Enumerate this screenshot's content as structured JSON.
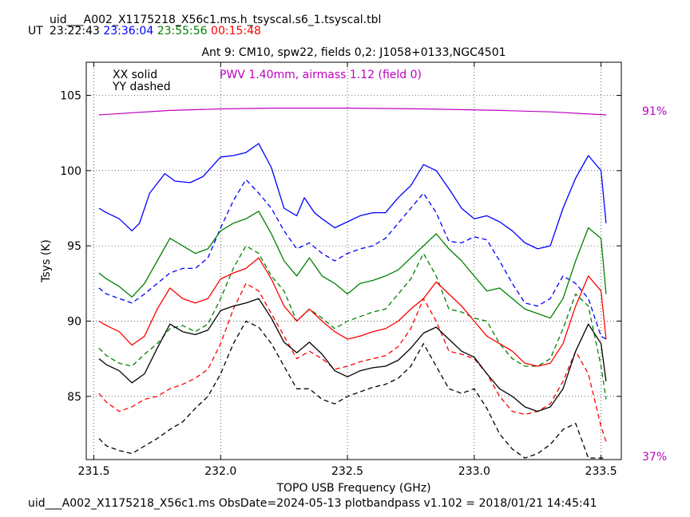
{
  "header": {
    "filename": "uid___A002_X1175218_X56c1.ms.h_tsyscal.s6_1.tsyscal.tbl",
    "ut_label": "UT",
    "times": [
      {
        "text": "23:22:43",
        "color": "#000000"
      },
      {
        "text": "23:36:04",
        "color": "#0000ff"
      },
      {
        "text": "23:55:56",
        "color": "#008000"
      },
      {
        "text": "00:15:48",
        "color": "#ff0000"
      }
    ]
  },
  "footer": "uid___A002_X1175218_X56c1.ms  ObsDate=2024-05-13   plotbandpass v1.102 = 2018/01/21 14:45:41",
  "legend": {
    "solid": "XX solid",
    "dashed": "YY dashed",
    "pwv": "PWV 1.40mm, airmass 1.12 (field 0)"
  },
  "right_axis": {
    "top_label": "91%",
    "bottom_label": "37%",
    "color": "#bf00bf"
  },
  "chart_data": {
    "type": "line",
    "title": "Ant 9: CM10,  spw22,  fields 0,2: J1058+0133,NGC4501",
    "xlabel": "TOPO USB Frequency (GHz)",
    "ylabel": "Tsys (K)",
    "xlim": [
      231.47,
      233.58
    ],
    "ylim": [
      80.8,
      107.2
    ],
    "xticks": [
      "231.5",
      "232.0",
      "232.5",
      "233.0",
      "233.5"
    ],
    "xtick_values": [
      231.5,
      232.0,
      232.5,
      233.0,
      233.5
    ],
    "yticks": [
      "85",
      "90",
      "95",
      "100",
      "105"
    ],
    "ytick_values": [
      85,
      90,
      95,
      100,
      105
    ],
    "grid": true,
    "atmosphere": {
      "color": "#bf00bf",
      "x": [
        231.52,
        231.8,
        232.0,
        232.2,
        232.5,
        232.8,
        233.1,
        233.3,
        233.52
      ],
      "y": [
        103.7,
        104.0,
        104.1,
        104.15,
        104.15,
        104.1,
        104.0,
        103.9,
        103.7
      ]
    },
    "series": [
      {
        "color": "#0000ff",
        "style": "solid",
        "x": [
          231.52,
          231.55,
          231.6,
          231.65,
          231.68,
          231.72,
          231.78,
          231.82,
          231.88,
          231.93,
          232.0,
          232.05,
          232.1,
          232.15,
          232.2,
          232.25,
          232.3,
          232.33,
          232.37,
          232.4,
          232.45,
          232.5,
          232.55,
          232.6,
          232.65,
          232.7,
          232.75,
          232.8,
          232.85,
          232.9,
          232.95,
          233.0,
          233.05,
          233.1,
          233.15,
          233.2,
          233.25,
          233.3,
          233.35,
          233.4,
          233.45,
          233.5,
          233.52
        ],
        "y": [
          97.5,
          97.2,
          96.8,
          96.0,
          96.5,
          98.5,
          99.8,
          99.3,
          99.2,
          99.6,
          100.9,
          101.0,
          101.2,
          101.8,
          100.2,
          97.5,
          97.0,
          98.2,
          97.2,
          96.8,
          96.2,
          96.6,
          97.0,
          97.2,
          97.2,
          98.2,
          99.0,
          100.4,
          100.0,
          98.8,
          97.5,
          96.8,
          97.0,
          96.6,
          96.0,
          95.2,
          94.8,
          95.0,
          97.5,
          99.5,
          101.0,
          100.0,
          96.5
        ]
      },
      {
        "color": "#0000ff",
        "style": "dashed",
        "x": [
          231.52,
          231.55,
          231.6,
          231.65,
          231.7,
          231.75,
          231.8,
          231.85,
          231.9,
          231.95,
          232.0,
          232.05,
          232.1,
          232.15,
          232.2,
          232.25,
          232.3,
          232.35,
          232.4,
          232.45,
          232.5,
          232.55,
          232.6,
          232.65,
          232.7,
          232.75,
          232.8,
          232.85,
          232.9,
          232.95,
          233.0,
          233.05,
          233.1,
          233.15,
          233.2,
          233.25,
          233.3,
          233.35,
          233.4,
          233.45,
          233.5,
          233.52
        ],
        "y": [
          92.2,
          91.8,
          91.5,
          91.2,
          91.8,
          92.5,
          93.2,
          93.5,
          93.5,
          94.2,
          96.2,
          98.0,
          99.4,
          98.5,
          97.5,
          96.0,
          94.8,
          95.2,
          94.5,
          94.0,
          94.5,
          94.8,
          95.0,
          95.5,
          96.5,
          97.5,
          98.5,
          97.2,
          95.3,
          95.2,
          95.6,
          95.4,
          94.0,
          92.5,
          91.2,
          91.0,
          91.5,
          93.0,
          92.5,
          91.5,
          89.0,
          88.8
        ]
      },
      {
        "color": "#008000",
        "style": "solid",
        "x": [
          231.52,
          231.55,
          231.6,
          231.65,
          231.7,
          231.75,
          231.8,
          231.85,
          231.9,
          231.95,
          232.0,
          232.05,
          232.1,
          232.15,
          232.2,
          232.25,
          232.3,
          232.35,
          232.4,
          232.45,
          232.5,
          232.55,
          232.6,
          232.65,
          232.7,
          232.75,
          232.8,
          232.85,
          232.9,
          232.95,
          233.0,
          233.05,
          233.1,
          233.15,
          233.2,
          233.25,
          233.3,
          233.35,
          233.4,
          233.45,
          233.5,
          233.52
        ],
        "y": [
          93.2,
          92.8,
          92.3,
          91.6,
          92.5,
          94.0,
          95.5,
          95.0,
          94.5,
          94.8,
          96.0,
          96.5,
          96.8,
          97.3,
          95.8,
          94.0,
          93.0,
          94.2,
          93.0,
          92.5,
          91.8,
          92.5,
          92.7,
          93.0,
          93.4,
          94.2,
          95.0,
          95.8,
          94.8,
          94.0,
          93.0,
          92.0,
          92.2,
          91.5,
          90.8,
          90.5,
          90.2,
          91.5,
          94.0,
          96.2,
          95.5,
          91.8
        ]
      },
      {
        "color": "#008000",
        "style": "dashed",
        "x": [
          231.52,
          231.55,
          231.6,
          231.65,
          231.7,
          231.75,
          231.8,
          231.85,
          231.9,
          231.95,
          232.0,
          232.05,
          232.1,
          232.15,
          232.2,
          232.25,
          232.3,
          232.35,
          232.4,
          232.45,
          232.5,
          232.55,
          232.6,
          232.65,
          232.7,
          232.75,
          232.8,
          232.85,
          232.9,
          232.95,
          233.0,
          233.05,
          233.1,
          233.15,
          233.2,
          233.25,
          233.3,
          233.35,
          233.4,
          233.45,
          233.5,
          233.52
        ],
        "y": [
          88.2,
          87.7,
          87.2,
          87.0,
          87.8,
          88.5,
          89.5,
          89.7,
          89.3,
          89.8,
          91.5,
          93.5,
          95.0,
          94.5,
          93.0,
          92.0,
          90.0,
          90.8,
          90.2,
          89.5,
          90.0,
          90.3,
          90.6,
          90.8,
          91.8,
          92.8,
          94.5,
          93.0,
          90.8,
          90.6,
          90.2,
          90.0,
          88.5,
          87.5,
          87.0,
          87.0,
          87.5,
          89.5,
          91.8,
          91.0,
          87.0,
          84.8
        ]
      },
      {
        "color": "#ff0000",
        "style": "solid",
        "x": [
          231.52,
          231.55,
          231.6,
          231.65,
          231.7,
          231.75,
          231.8,
          231.85,
          231.9,
          231.95,
          232.0,
          232.05,
          232.1,
          232.15,
          232.2,
          232.25,
          232.3,
          232.35,
          232.4,
          232.45,
          232.5,
          232.55,
          232.6,
          232.65,
          232.7,
          232.75,
          232.8,
          232.85,
          232.9,
          232.95,
          233.0,
          233.05,
          233.1,
          233.15,
          233.2,
          233.25,
          233.3,
          233.35,
          233.4,
          233.45,
          233.5,
          233.52
        ],
        "y": [
          90.0,
          89.7,
          89.3,
          88.4,
          89.0,
          90.8,
          92.2,
          91.5,
          91.2,
          91.5,
          92.8,
          93.2,
          93.5,
          94.2,
          92.8,
          91.0,
          90.0,
          90.8,
          90.0,
          89.3,
          88.8,
          89.0,
          89.3,
          89.5,
          90.0,
          90.8,
          91.5,
          92.6,
          91.8,
          91.0,
          90.0,
          89.0,
          88.5,
          88.0,
          87.2,
          87.0,
          87.2,
          88.5,
          91.0,
          93.0,
          92.0,
          88.8
        ]
      },
      {
        "color": "#ff0000",
        "style": "dashed",
        "x": [
          231.52,
          231.55,
          231.6,
          231.65,
          231.7,
          231.75,
          231.8,
          231.85,
          231.9,
          231.95,
          232.0,
          232.05,
          232.1,
          232.15,
          232.2,
          232.25,
          232.3,
          232.35,
          232.4,
          232.45,
          232.5,
          232.55,
          232.6,
          232.65,
          232.7,
          232.75,
          232.8,
          232.85,
          232.9,
          232.95,
          233.0,
          233.05,
          233.1,
          233.15,
          233.2,
          233.25,
          233.3,
          233.35,
          233.4,
          233.45,
          233.5,
          233.52
        ],
        "y": [
          85.2,
          84.6,
          84.0,
          84.3,
          84.8,
          85.0,
          85.5,
          85.8,
          86.2,
          86.8,
          88.5,
          90.8,
          92.5,
          92.0,
          90.5,
          89.0,
          87.5,
          88.0,
          87.5,
          86.8,
          87.0,
          87.3,
          87.5,
          87.7,
          88.3,
          89.5,
          91.5,
          90.0,
          88.0,
          87.8,
          87.5,
          86.5,
          85.0,
          84.0,
          83.8,
          84.0,
          84.5,
          86.0,
          88.0,
          86.5,
          83.0,
          82.0
        ]
      },
      {
        "color": "#000000",
        "style": "solid",
        "x": [
          231.52,
          231.55,
          231.6,
          231.65,
          231.7,
          231.75,
          231.8,
          231.85,
          231.9,
          231.95,
          232.0,
          232.05,
          232.1,
          232.15,
          232.2,
          232.25,
          232.3,
          232.35,
          232.4,
          232.45,
          232.5,
          232.55,
          232.6,
          232.65,
          232.7,
          232.75,
          232.8,
          232.85,
          232.9,
          232.95,
          233.0,
          233.05,
          233.1,
          233.15,
          233.2,
          233.25,
          233.3,
          233.35,
          233.4,
          233.45,
          233.5,
          233.52
        ],
        "y": [
          87.5,
          87.1,
          86.7,
          85.9,
          86.5,
          88.2,
          89.8,
          89.3,
          89.1,
          89.4,
          90.7,
          91.0,
          91.2,
          91.5,
          90.2,
          88.6,
          87.9,
          88.6,
          87.8,
          86.7,
          86.3,
          86.7,
          86.9,
          87.0,
          87.4,
          88.2,
          89.2,
          89.6,
          88.8,
          88.0,
          87.6,
          86.5,
          85.5,
          85.0,
          84.3,
          84.0,
          84.3,
          85.5,
          88.0,
          89.8,
          88.5,
          86.0
        ]
      },
      {
        "color": "#000000",
        "style": "dashed",
        "x": [
          231.52,
          231.55,
          231.6,
          231.65,
          231.7,
          231.75,
          231.8,
          231.85,
          231.9,
          231.95,
          232.0,
          232.05,
          232.1,
          232.15,
          232.2,
          232.25,
          232.3,
          232.35,
          232.4,
          232.45,
          232.5,
          232.55,
          232.6,
          232.65,
          232.7,
          232.75,
          232.8,
          232.85,
          232.9,
          232.95,
          233.0,
          233.05,
          233.1,
          233.15,
          233.2,
          233.25,
          233.3,
          233.35,
          233.4,
          233.45,
          233.5,
          233.52
        ],
        "y": [
          82.2,
          81.7,
          81.4,
          81.2,
          81.7,
          82.2,
          82.8,
          83.3,
          84.2,
          85.0,
          86.5,
          88.5,
          90.0,
          89.6,
          88.5,
          87.0,
          85.5,
          85.5,
          84.8,
          84.5,
          85.0,
          85.3,
          85.6,
          85.8,
          86.2,
          87.0,
          88.5,
          87.0,
          85.5,
          85.2,
          85.5,
          84.2,
          82.5,
          81.5,
          80.9,
          81.2,
          81.8,
          82.8,
          83.2,
          80.9,
          80.9,
          80.9
        ]
      }
    ]
  }
}
